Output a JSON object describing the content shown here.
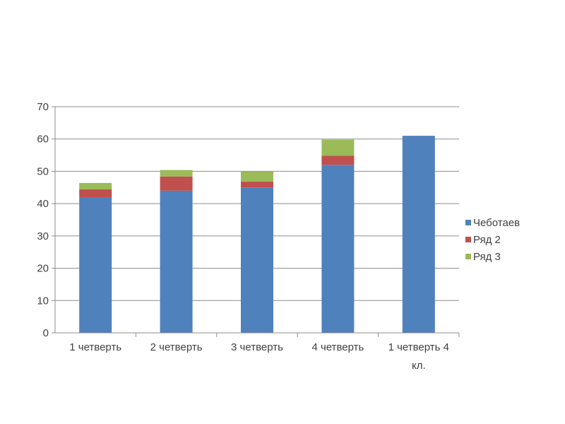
{
  "chart_data": {
    "type": "bar",
    "stacked": true,
    "categories": [
      [
        "1 четверть"
      ],
      [
        "2 четверть"
      ],
      [
        "3 четверть"
      ],
      [
        "4 четверть"
      ],
      [
        "1 четверть 4",
        "кл."
      ]
    ],
    "series": [
      {
        "name": "Чеботаев",
        "color": "#4F81BD",
        "values": [
          42,
          44,
          45,
          52,
          61
        ]
      },
      {
        "name": "Ряд 2",
        "color": "#C0504D",
        "values": [
          2.4,
          4.4,
          1.8,
          2.8,
          0
        ]
      },
      {
        "name": "Ряд 3",
        "color": "#9BBB59",
        "values": [
          2.0,
          2.0,
          3.2,
          5.0,
          0
        ]
      }
    ],
    "ylim": [
      0,
      70
    ],
    "yticks": [
      0,
      10,
      20,
      30,
      40,
      50,
      60,
      70
    ],
    "grid": true,
    "legend_position": "right"
  }
}
